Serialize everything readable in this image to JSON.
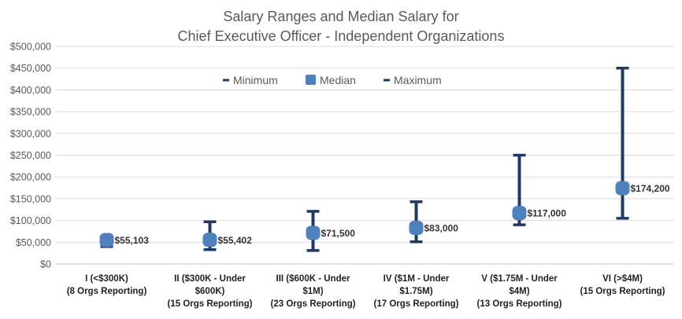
{
  "chart_data": {
    "type": "range-median",
    "title_lines": [
      "Salary Ranges and Median Salary for",
      "Chief Executive Officer - Independent Organizations"
    ],
    "ylim": [
      0,
      500000
    ],
    "yticks": [
      0,
      50000,
      100000,
      150000,
      200000,
      250000,
      300000,
      350000,
      400000,
      450000,
      500000
    ],
    "ytick_labels": [
      "$0",
      "$50,000",
      "$100,000",
      "$150,000",
      "$200,000",
      "$250,000",
      "$300,000",
      "$350,000",
      "$400,000",
      "$450,000",
      "$500,000"
    ],
    "grid": true,
    "legend": {
      "placement": "top-center",
      "entries": [
        {
          "name": "Minimum",
          "marker": "dash"
        },
        {
          "name": "Median",
          "marker": "square"
        },
        {
          "name": "Maximum",
          "marker": "dash"
        }
      ]
    },
    "categories": [
      {
        "lines": [
          "I (<$300K)",
          "(8 Orgs Reporting)"
        ],
        "min": 40000,
        "median": 55103,
        "max": 63000,
        "median_label": "$55,103"
      },
      {
        "lines": [
          "II ($300K - Under",
          "$600K)",
          "(15 Orgs Reporting)"
        ],
        "min": 33000,
        "median": 55402,
        "max": 97000,
        "median_label": "$55,402"
      },
      {
        "lines": [
          "III ($600K - Under",
          "$1M)",
          "(23 Orgs Reporting)"
        ],
        "min": 31000,
        "median": 71500,
        "max": 121000,
        "median_label": "$71,500"
      },
      {
        "lines": [
          "IV ($1M - Under",
          "$1.75M)",
          "(17 Orgs Reporting)"
        ],
        "min": 51000,
        "median": 83000,
        "max": 143000,
        "median_label": "$83,000"
      },
      {
        "lines": [
          "V ($1.75M - Under",
          "$4M)",
          "(13 Orgs Reporting)"
        ],
        "min": 90000,
        "median": 117000,
        "max": 250000,
        "median_label": "$117,000"
      },
      {
        "lines": [
          "VI (>$4M)",
          "(15 Orgs Reporting)"
        ],
        "min": 105000,
        "median": 174200,
        "max": 450000,
        "median_label": "$174,200"
      }
    ],
    "colors": {
      "range": "#1f3864",
      "median": "#4f81bd",
      "grid": "#d9d9d9",
      "text": "#595959"
    }
  }
}
